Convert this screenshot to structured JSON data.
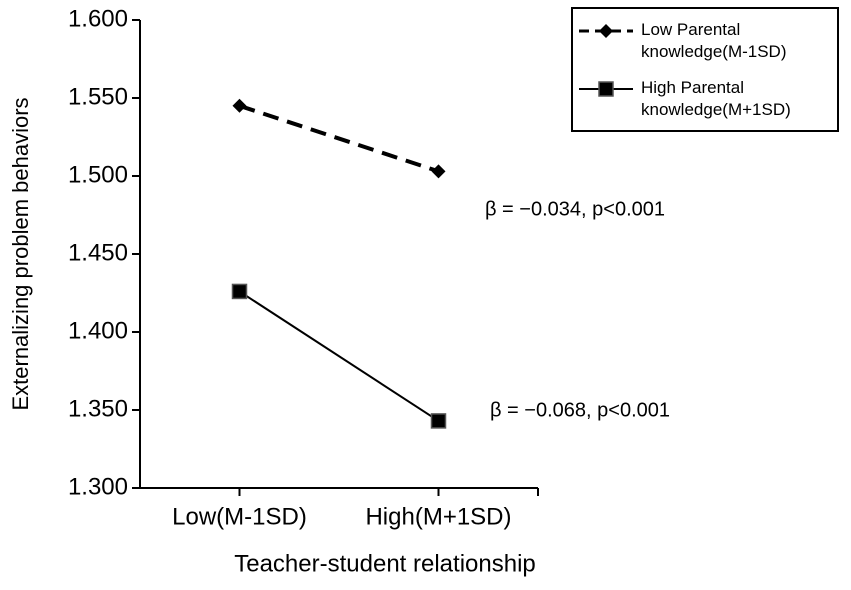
{
  "chart_data": {
    "type": "line",
    "y_label": "Externalizing problem behaviors",
    "x_label": "Teacher-student relationship",
    "categories": [
      "Low(M-1SD)",
      "High(M+1SD)"
    ],
    "series": [
      {
        "name": "Low Parental knowledge(M-1SD)",
        "color": "#000000",
        "dashed": true,
        "marker": "diamond",
        "values": [
          1.545,
          1.503
        ]
      },
      {
        "name": "High Parental knowledge(M+1SD)",
        "color": "#000000",
        "dashed": false,
        "marker": "square",
        "values": [
          1.426,
          1.343
        ]
      }
    ],
    "annotations": [
      "β = −0.034, p<0.001",
      "β = −0.068, p<0.001"
    ],
    "ylim": [
      1.3,
      1.6
    ],
    "yticks": [
      {
        "value": 1.3,
        "label": "1.300"
      },
      {
        "value": 1.35,
        "label": "1.350"
      },
      {
        "value": 1.4,
        "label": "1.400"
      },
      {
        "value": 1.45,
        "label": "1.450"
      },
      {
        "value": 1.5,
        "label": "1.500"
      },
      {
        "value": 1.55,
        "label": "1.550"
      },
      {
        "value": 1.6,
        "label": "1.600"
      }
    ],
    "legend_position": "upper right"
  }
}
